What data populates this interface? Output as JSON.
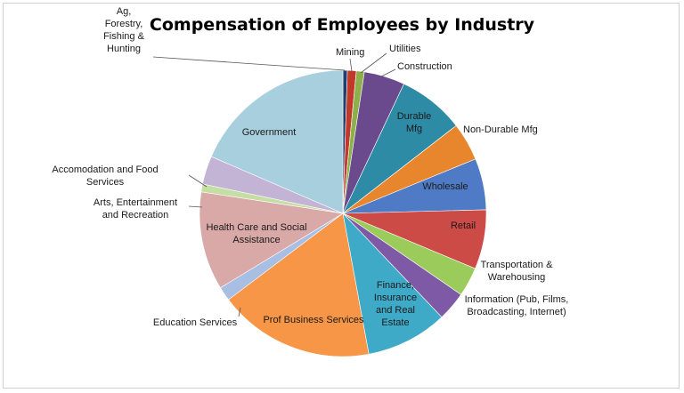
{
  "chart_data": {
    "type": "pie",
    "title": "Compensation of Employees by Industry",
    "start_angle_deg": 0,
    "direction": "clockwise",
    "slices": [
      {
        "label": "Ag, Forestry, Fishing & Hunting",
        "value": 0.5,
        "color": "#1F3E6E"
      },
      {
        "label": "Mining",
        "value": 1.0,
        "color": "#C0392B"
      },
      {
        "label": "Utilities",
        "value": 0.9,
        "color": "#8DB04A"
      },
      {
        "label": "Construction",
        "value": 4.6,
        "color": "#6A4A8C"
      },
      {
        "label": "Durable Mfg",
        "value": 7.5,
        "color": "#2E8BA6"
      },
      {
        "label": "Non-Durable Mfg",
        "value": 4.3,
        "color": "#E8862E"
      },
      {
        "label": "Wholesale",
        "value": 5.8,
        "color": "#4F7BC6"
      },
      {
        "label": "Retail",
        "value": 6.7,
        "color": "#CD4B47"
      },
      {
        "label": "Transportation & Warehousing",
        "value": 3.3,
        "color": "#9BCB5B"
      },
      {
        "label": "Information (Pub, Films, Broadcasting, Internet)",
        "value": 3.3,
        "color": "#7E5AA6"
      },
      {
        "label": "Finance, Insurance and Real Estate",
        "value": 9.2,
        "color": "#3FAAC8"
      },
      {
        "label": "Prof Business Services",
        "value": 17.6,
        "color": "#F79646"
      },
      {
        "label": "Education Services",
        "value": 1.6,
        "color": "#A9BEE3"
      },
      {
        "label": "Health Care and Social Assistance",
        "value": 11.1,
        "color": "#D9A9A8"
      },
      {
        "label": "Arts, Entertainment and Recreation",
        "value": 0.9,
        "color": "#C5DEA3"
      },
      {
        "label": "Accomodation and Food Services",
        "value": 3.2,
        "color": "#C3B4D6"
      },
      {
        "label": "Government",
        "value": 18.5,
        "color": "#A8CFDE"
      }
    ]
  },
  "labels": {
    "ag": [
      "Ag,",
      "Forestry,",
      "Fishing &",
      "Hunting"
    ],
    "mining": [
      "Mining"
    ],
    "utilities": [
      "Utilities"
    ],
    "construction": [
      "Construction"
    ],
    "durable": [
      "Durable",
      "Mfg"
    ],
    "nondurable": [
      "Non-Durable Mfg"
    ],
    "wholesale": [
      "Wholesale"
    ],
    "retail": [
      "Retail"
    ],
    "transport": [
      "Transportation &",
      "Warehousing"
    ],
    "information": [
      "Information (Pub, Films,",
      "Broadcasting, Internet)"
    ],
    "finance": [
      "Finance,",
      "Insurance",
      "and Real",
      "Estate"
    ],
    "prof": [
      "Prof Business Services"
    ],
    "education": [
      "Education Services"
    ],
    "health": [
      "Health Care and Social",
      "Assistance"
    ],
    "arts": [
      "Arts, Entertainment",
      "and Recreation"
    ],
    "accom": [
      "Accomodation and Food",
      "Services"
    ],
    "government": [
      "Government"
    ]
  }
}
